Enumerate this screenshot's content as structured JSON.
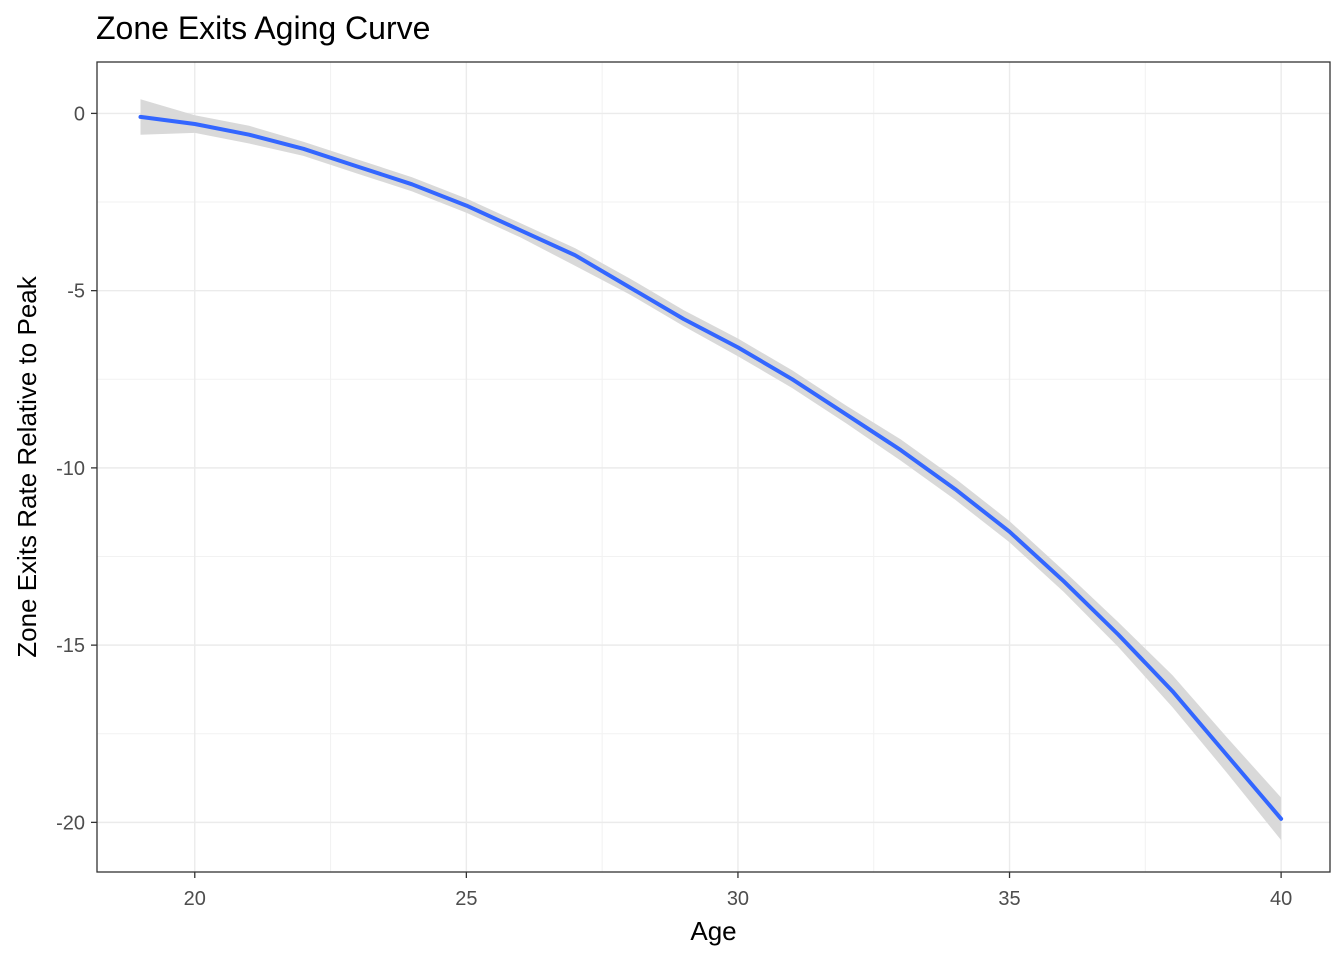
{
  "chart_data": {
    "type": "line",
    "title": "Zone Exits Aging Curve",
    "xlabel": "Age",
    "ylabel": "Zone Exits Rate Relative to Peak",
    "xlim": [
      18.2,
      40.9
    ],
    "ylim": [
      -21.4,
      1.45
    ],
    "x_ticks": [
      20,
      25,
      30,
      35,
      40
    ],
    "y_ticks": [
      0,
      -5,
      -10,
      -15,
      -20
    ],
    "x_tick_labels": [
      "20",
      "25",
      "30",
      "35",
      "40"
    ],
    "y_tick_labels": [
      "0",
      "-5",
      "-10",
      "-15",
      "-20"
    ],
    "grid": true,
    "line_color": "#3366FF",
    "band_color": "#d9d9d9",
    "series": [
      {
        "x": [
          19,
          20,
          21,
          22,
          23,
          24,
          25,
          26,
          27,
          28,
          29,
          30,
          31,
          32,
          33,
          34,
          35,
          36,
          37,
          38,
          39,
          40
        ],
        "y": [
          -0.1,
          -0.3,
          -0.6,
          -1.0,
          -1.5,
          -2.0,
          -2.6,
          -3.3,
          -4.0,
          -4.9,
          -5.8,
          -6.6,
          -7.5,
          -8.5,
          -9.5,
          -10.6,
          -11.8,
          -13.2,
          -14.7,
          -16.3,
          -18.1,
          -19.9
        ],
        "lower": [
          -0.6,
          -0.55,
          -0.85,
          -1.2,
          -1.7,
          -2.2,
          -2.8,
          -3.5,
          -4.3,
          -5.1,
          -6.0,
          -6.85,
          -7.75,
          -8.75,
          -9.8,
          -10.9,
          -12.1,
          -13.5,
          -15.05,
          -16.75,
          -18.6,
          -20.5
        ],
        "upper": [
          0.4,
          -0.05,
          -0.35,
          -0.8,
          -1.3,
          -1.8,
          -2.4,
          -3.1,
          -3.8,
          -4.65,
          -5.55,
          -6.35,
          -7.25,
          -8.25,
          -9.2,
          -10.3,
          -11.5,
          -12.9,
          -14.35,
          -15.85,
          -17.6,
          -19.3
        ]
      }
    ]
  }
}
